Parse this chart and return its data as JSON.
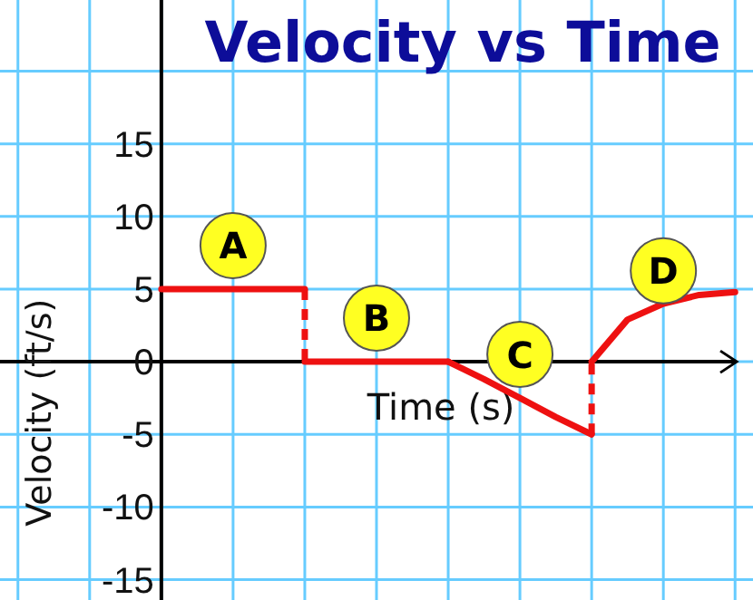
{
  "chart_data": {
    "type": "line",
    "title": "Velocity vs Time",
    "xlabel": "Time (s)",
    "ylabel": "Velocity (ft/s)",
    "categories": [
      null,
      null,
      null,
      null,
      null,
      null,
      null,
      null,
      null,
      null,
      null,
      null,
      null,
      null,
      null,
      null,
      null,
      null,
      null,
      null,
      null
    ],
    "ylim": [
      -16.4,
      24.9
    ],
    "yticks": [
      -15,
      -10,
      -5,
      0,
      5,
      10,
      15,
      {
        "value": 20,
        "label": null
      }
    ],
    "tick_labels": "y",
    "grid": true,
    "marker": "none",
    "line_style": "solid",
    "series": [
      {
        "color": "#ee1111",
        "values": [
          null,
          null,
          null,
          null,
          5,
          5,
          5,
          5,
          5,
          null,
          null,
          null,
          null,
          null,
          null,
          null,
          null,
          null,
          null,
          null,
          null
        ]
      },
      {
        "color": "#ee1111",
        "values": [
          null,
          null,
          null,
          null,
          null,
          null,
          null,
          null,
          0,
          0,
          0,
          0,
          0,
          null,
          null,
          null,
          null,
          null,
          null,
          null,
          null
        ]
      },
      {
        "color": "#ee1111",
        "values": [
          null,
          null,
          null,
          null,
          null,
          null,
          null,
          null,
          null,
          null,
          null,
          null,
          0,
          -1.2,
          -2.5,
          -3.8,
          -5,
          null,
          null,
          null,
          null
        ]
      },
      {
        "color": "#ee1111",
        "values": [
          null,
          null,
          null,
          null,
          null,
          null,
          null,
          null,
          null,
          null,
          null,
          null,
          null,
          null,
          null,
          null,
          0,
          2.9,
          4,
          4.6,
          4.8
        ]
      }
    ],
    "annotations": [
      "A",
      "B",
      "C",
      "D"
    ]
  }
}
